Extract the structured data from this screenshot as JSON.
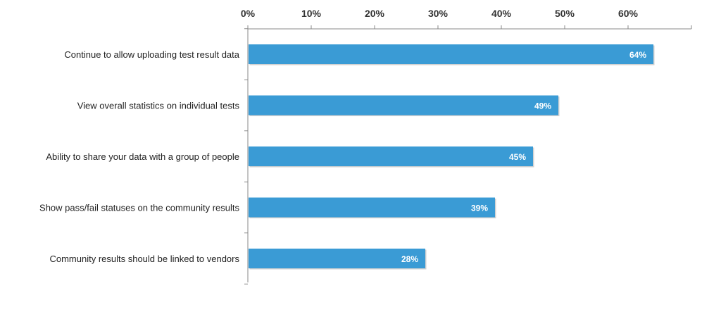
{
  "chart_data": {
    "type": "bar",
    "orientation": "horizontal",
    "categories": [
      "Continue to allow uploading test result data",
      "View overall statistics on individual tests",
      "Ability to share your data with a group of people",
      "Show pass/fail statuses on the community results",
      "Community results should be linked to vendors"
    ],
    "values": [
      64,
      49,
      45,
      39,
      28
    ],
    "data_labels": [
      "64%",
      "49%",
      "45%",
      "39%",
      "28%"
    ],
    "xlim": [
      0,
      70
    ],
    "x_ticks": [
      0,
      10,
      20,
      30,
      40,
      50,
      60
    ],
    "x_tick_labels": [
      "0%",
      "10%",
      "20%",
      "30%",
      "40%",
      "50%",
      "60%"
    ],
    "x_axis_position": "top",
    "grid": false,
    "legend": "none",
    "bar_color": "#3a9bd5",
    "label_color": "#ffffff"
  }
}
